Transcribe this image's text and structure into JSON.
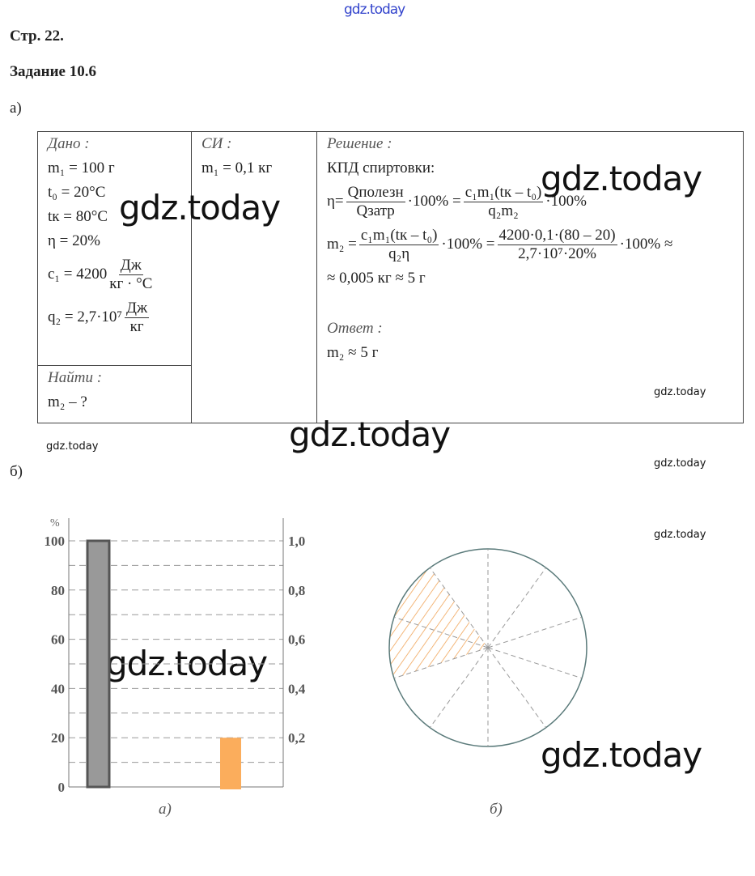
{
  "watermarks": {
    "top": "gdz.today",
    "big": "gdz.today",
    "small": "gdz.today"
  },
  "header": {
    "page": "Стр. 22.",
    "task": "Задание 10.6",
    "part_a": "а)",
    "part_b": "б)"
  },
  "given": {
    "title": "Дано :",
    "lines": [
      "m₁ = 100 г",
      "t₀ = 20°C",
      "tк = 80°C",
      "η = 20%"
    ],
    "c1": "c₁ = 4200",
    "c1_num": "Дж",
    "c1_den": "кг · °C",
    "q2": "q₂ = 2,7·10⁷",
    "q2_num": "Дж",
    "q2_den": "кг"
  },
  "find": {
    "title": "Найти :",
    "value": "m₂ – ?"
  },
  "si": {
    "title": "СИ :",
    "value": "m₁ = 0,1 кг"
  },
  "solution": {
    "title": "Решение :",
    "line1": "КПД спиртовки:",
    "eq1": {
      "lhs": "η=",
      "f1n": "Qполезн",
      "f1d": "Qзатр",
      "mid": "·100% =",
      "f2n": "c₁m₁(tк – t₀)",
      "f2d": "q₂m₂",
      "end": "·100%"
    },
    "eq2": {
      "lhs": "m₂ =",
      "f1n": "c₁m₁(tк – t₀)",
      "f1d": "q₂η",
      "mid": "·100% =",
      "f2n": "4200·0,1·(80 – 20)",
      "f2d": "2,7·10⁷·20%",
      "end": "·100% ≈"
    },
    "line4": "≈ 0,005 кг  ≈  5 г",
    "answer_title": "Ответ :",
    "answer": "m₂ ≈  5 г"
  },
  "chart_data": [
    {
      "type": "bar",
      "ylabel": "%",
      "left_ticks": [
        "0",
        "20",
        "40",
        "60",
        "80",
        "100"
      ],
      "right_ticks": [
        "0,2",
        "0,4",
        "0,6",
        "0,8",
        "1,0"
      ],
      "ylim": [
        0,
        100
      ],
      "grid": true,
      "values": [
        100,
        20
      ],
      "colors": [
        "#999999",
        "#fbad5c"
      ],
      "caption": "а)"
    },
    {
      "type": "pie",
      "sectors": 10,
      "highlighted_fraction": 0.2,
      "highlight_color": "#f0a050",
      "caption": "б)"
    }
  ]
}
